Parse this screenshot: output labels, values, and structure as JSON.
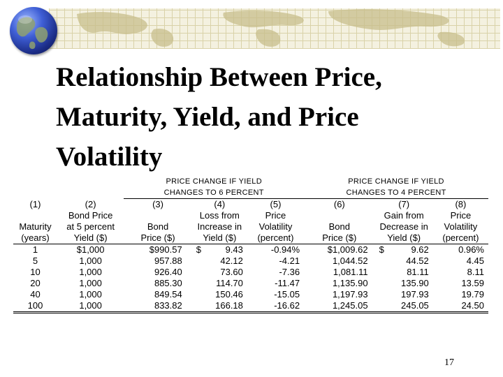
{
  "title_lines": [
    "Relationship Between Price,",
    "Maturity, Yield, and Price",
    "Volatility"
  ],
  "table": {
    "group_headers": [
      {
        "line1": "PRICE CHANGE IF YIELD",
        "line2": "CHANGES TO 6 PERCENT"
      },
      {
        "line1": "PRICE CHANGE IF YIELD",
        "line2": "CHANGES TO 4 PERCENT"
      }
    ],
    "column_numbers": [
      "(1)",
      "(2)",
      "(3)",
      "(4)",
      "(5)",
      "(6)",
      "(7)",
      "(8)"
    ],
    "column_header_lines": [
      [
        "",
        "",
        "Maturity",
        "(years)"
      ],
      [
        "Bond Price",
        "at 5 percent",
        "Yield ($)"
      ],
      [
        "",
        "Bond",
        "Price ($)"
      ],
      [
        "Loss from",
        "Increase in",
        "Yield ($)"
      ],
      [
        "Price",
        "Volatility",
        "(percent)"
      ],
      [
        "",
        "Bond",
        "Price ($)"
      ],
      [
        "Gain from",
        "Decrease in",
        "Yield ($)"
      ],
      [
        "Price",
        "Volatility",
        "(percent)"
      ]
    ],
    "rows": [
      {
        "maturity": "1",
        "price5": "$1,000",
        "price6": "$990.57",
        "loss": "9.43",
        "loss_prefix": "$",
        "vol6": "-0.94%",
        "price4": "$1,009.62",
        "gain": "9.62",
        "gain_prefix": "$",
        "vol4": "0.96%"
      },
      {
        "maturity": "5",
        "price5": "1,000",
        "price6": "957.88",
        "loss": "42.12",
        "loss_prefix": "",
        "vol6": "-4.21",
        "price4": "1,044.52",
        "gain": "44.52",
        "gain_prefix": "",
        "vol4": "4.45"
      },
      {
        "maturity": "10",
        "price5": "1,000",
        "price6": "926.40",
        "loss": "73.60",
        "loss_prefix": "",
        "vol6": "-7.36",
        "price4": "1,081.11",
        "gain": "81.11",
        "gain_prefix": "",
        "vol4": "8.11"
      },
      {
        "maturity": "20",
        "price5": "1,000",
        "price6": "885.30",
        "loss": "114.70",
        "loss_prefix": "",
        "vol6": "-11.47",
        "price4": "1,135.90",
        "gain": "135.90",
        "gain_prefix": "",
        "vol4": "13.59"
      },
      {
        "maturity": "40",
        "price5": "1,000",
        "price6": "849.54",
        "loss": "150.46",
        "loss_prefix": "",
        "vol6": "-15.05",
        "price4": "1,197.93",
        "gain": "197.93",
        "gain_prefix": "",
        "vol4": "19.79"
      },
      {
        "maturity": "100",
        "price5": "1,000",
        "price6": "833.82",
        "loss": "166.18",
        "loss_prefix": "",
        "vol6": "-16.62",
        "price4": "1,245.05",
        "gain": "245.05",
        "gain_prefix": "",
        "vol4": "24.50"
      }
    ]
  },
  "page_number": "17",
  "icons": {
    "globe": "globe-icon",
    "banner": "world-map-banner"
  },
  "colors": {
    "globe": "#2b45b8",
    "banner": "#f4f1e0",
    "map_lines": "#d9d2a8"
  }
}
